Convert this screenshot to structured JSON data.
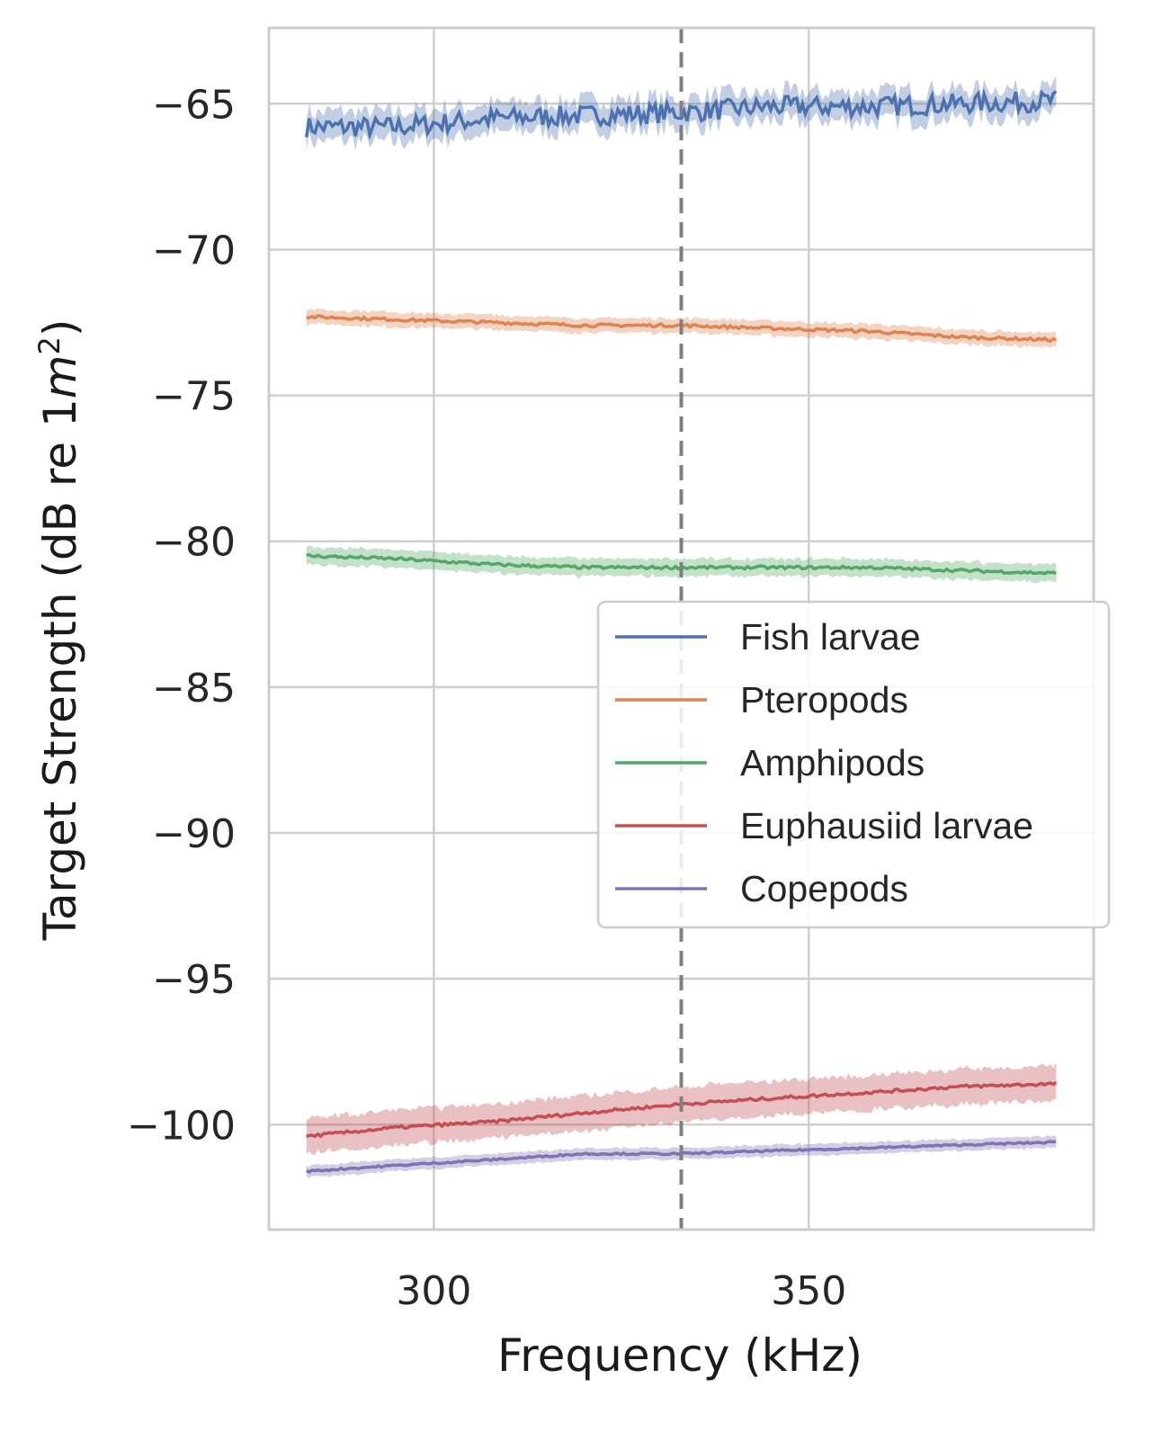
{
  "chart_data": {
    "type": "line",
    "xlabel": "Frequency (kHz)",
    "ylabel_main": "Target Strength (dB re 1",
    "ylabel_var": "m",
    "ylabel_sup": "2",
    "ylabel_end": ")",
    "xlim": [
      278,
      388
    ],
    "ylim": [
      -103.6,
      -62.4
    ],
    "xticks": [
      300,
      350
    ],
    "xtick_labels": [
      "300",
      "350"
    ],
    "yticks": [
      -65,
      -70,
      -75,
      -80,
      -85,
      -90,
      -95,
      -100
    ],
    "ytick_labels": [
      "−65",
      "−70",
      "−75",
      "−80",
      "−85",
      "−90",
      "−95",
      "−100"
    ],
    "vline_x": 333,
    "grid": true,
    "legend_position": "center-right",
    "series": [
      {
        "name": "Fish larvae",
        "color": "#4c72b0",
        "x": [
          283,
          295,
          308,
          320,
          333,
          345,
          358,
          370,
          383
        ],
        "y": [
          -65.8,
          -65.8,
          -65.5,
          -65.4,
          -65.3,
          -65.1,
          -65.1,
          -65.0,
          -64.9
        ],
        "band": 0.5,
        "noise": 0.35
      },
      {
        "name": "Pteropods",
        "color": "#dd8452",
        "x": [
          283,
          295,
          308,
          320,
          333,
          345,
          358,
          370,
          383
        ],
        "y": [
          -72.3,
          -72.4,
          -72.5,
          -72.6,
          -72.6,
          -72.7,
          -72.8,
          -73.0,
          -73.1
        ],
        "band": 0.25,
        "noise": 0.05
      },
      {
        "name": "Amphipods",
        "color": "#55a868",
        "x": [
          283,
          295,
          308,
          320,
          333,
          345,
          358,
          370,
          383
        ],
        "y": [
          -80.5,
          -80.6,
          -80.8,
          -80.9,
          -80.9,
          -80.9,
          -80.9,
          -81.0,
          -81.1
        ],
        "band": 0.3,
        "noise": 0.05
      },
      {
        "name": "Euphausiid larvae",
        "color": "#c44e52",
        "x": [
          283,
          295,
          308,
          320,
          333,
          345,
          358,
          370,
          383
        ],
        "y": [
          -100.4,
          -100.1,
          -99.9,
          -99.6,
          -99.3,
          -99.1,
          -98.9,
          -98.7,
          -98.6
        ],
        "band": 0.6,
        "noise": 0.05
      },
      {
        "name": "Copepods",
        "color": "#8172b3",
        "x": [
          283,
          295,
          308,
          320,
          333,
          345,
          358,
          370,
          383
        ],
        "y": [
          -101.6,
          -101.4,
          -101.2,
          -101.0,
          -101.0,
          -100.9,
          -100.8,
          -100.7,
          -100.6
        ],
        "band": 0.2,
        "noise": 0.03
      }
    ]
  }
}
